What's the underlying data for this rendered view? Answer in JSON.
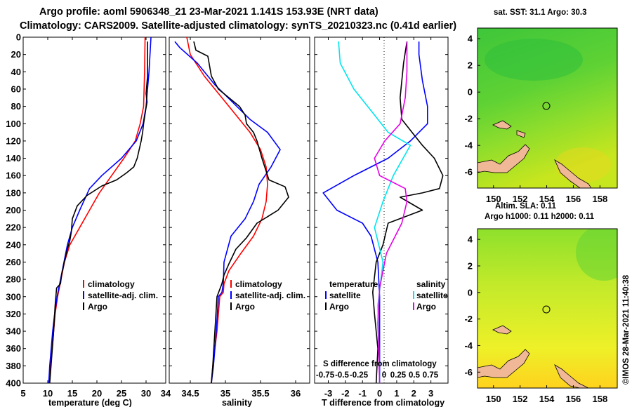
{
  "header": {
    "line1": "Argo profile: aoml 5906348_21 23-Mar-2021 1.141S 153.93E (NRT data)",
    "line2": "Climatology: CARS2009. Satellite-adjusted climatology: synTS_20210323.nc (0.41d earlier)"
  },
  "colors": {
    "climatology": "#ff0000",
    "satellite": "#0000ff",
    "argo": "#000000",
    "t_diff": "#0000ff",
    "s_sat": "#00e5ee",
    "s_argo": "#e600e6",
    "land": "#f0b896"
  },
  "chart_data": [
    {
      "type": "line",
      "name": "temperature",
      "xlabel": "temperature (deg C)",
      "ylabel": "depth",
      "xlim": [
        5,
        34
      ],
      "ylim": [
        400,
        0
      ],
      "xticks": [
        5,
        10,
        15,
        20,
        25,
        30
      ],
      "yticks": [
        0,
        20,
        40,
        60,
        80,
        100,
        120,
        140,
        160,
        180,
        200,
        220,
        240,
        260,
        280,
        300,
        320,
        340,
        360,
        380,
        400
      ],
      "legend": [
        "climatology",
        "satellite-adj. clim.",
        "Argo"
      ],
      "series": [
        {
          "name": "climatology",
          "color": "#ff0000",
          "points": [
            [
              29.8,
              0
            ],
            [
              29.7,
              40
            ],
            [
              29.5,
              80
            ],
            [
              28.8,
              100
            ],
            [
              27.8,
              120
            ],
            [
              25.5,
              140
            ],
            [
              23,
              160
            ],
            [
              20.5,
              180
            ],
            [
              18.5,
              200
            ],
            [
              16.5,
              220
            ],
            [
              14.5,
              240
            ],
            [
              13.4,
              260
            ],
            [
              12.7,
              280
            ],
            [
              12,
              300
            ],
            [
              11.5,
              320
            ],
            [
              11.2,
              340
            ],
            [
              10.9,
              360
            ],
            [
              10.6,
              380
            ],
            [
              10.3,
              400
            ]
          ]
        },
        {
          "name": "satellite-adj. clim.",
          "color": "#0000ff",
          "points": [
            [
              31,
              0
            ],
            [
              30.6,
              40
            ],
            [
              30,
              80
            ],
            [
              29.4,
              100
            ],
            [
              28,
              120
            ],
            [
              25,
              140
            ],
            [
              21,
              160
            ],
            [
              18.5,
              175
            ],
            [
              16.5,
              200
            ],
            [
              15,
              220
            ],
            [
              14,
              240
            ],
            [
              13.3,
              260
            ],
            [
              12.6,
              280
            ],
            [
              11.9,
              300
            ],
            [
              11.4,
              320
            ],
            [
              11,
              340
            ],
            [
              10.7,
              360
            ],
            [
              10.4,
              380
            ],
            [
              10.2,
              400
            ]
          ]
        },
        {
          "name": "Argo",
          "color": "#000000",
          "points": [
            [
              30.3,
              5
            ],
            [
              30.3,
              45
            ],
            [
              30,
              65
            ],
            [
              30.2,
              75
            ],
            [
              29.9,
              85
            ],
            [
              29.5,
              100
            ],
            [
              29.3,
              110
            ],
            [
              29,
              120
            ],
            [
              28.2,
              140
            ],
            [
              27.5,
              150
            ],
            [
              26,
              157
            ],
            [
              24,
              165
            ],
            [
              21,
              172
            ],
            [
              18,
              183
            ],
            [
              16,
              195
            ],
            [
              15,
              210
            ],
            [
              14.8,
              225
            ],
            [
              14.5,
              235
            ],
            [
              14,
              245
            ],
            [
              13.3,
              262
            ],
            [
              12.8,
              275
            ],
            [
              12.6,
              285
            ],
            [
              11.8,
              290
            ],
            [
              11.5,
              310
            ],
            [
              11.2,
              340
            ],
            [
              10.8,
              370
            ],
            [
              10.4,
              400
            ]
          ]
        }
      ]
    },
    {
      "type": "line",
      "name": "salinity",
      "xlabel": "salinity",
      "ylabel": "depth",
      "xlim": [
        34.2,
        36.2
      ],
      "ylim": [
        400,
        0
      ],
      "xticks": [
        34.5,
        35,
        35.5,
        36
      ],
      "legend": [
        "climatology",
        "satellite-adj. clim.",
        "Argo"
      ],
      "series": [
        {
          "name": "climatology",
          "color": "#ff0000",
          "points": [
            [
              34.45,
              0
            ],
            [
              34.5,
              20
            ],
            [
              34.7,
              45
            ],
            [
              34.95,
              70
            ],
            [
              35.15,
              90
            ],
            [
              35.35,
              110
            ],
            [
              35.5,
              130
            ],
            [
              35.58,
              150
            ],
            [
              35.6,
              170
            ],
            [
              35.58,
              190
            ],
            [
              35.52,
              210
            ],
            [
              35.4,
              230
            ],
            [
              35.22,
              250
            ],
            [
              35.05,
              270
            ],
            [
              34.98,
              285
            ],
            [
              34.97,
              295
            ],
            [
              34.92,
              300
            ],
            [
              34.88,
              340
            ],
            [
              34.82,
              380
            ],
            [
              34.8,
              400
            ]
          ]
        },
        {
          "name": "satellite-adj. clim.",
          "color": "#0000ff",
          "points": [
            [
              34.28,
              5
            ],
            [
              34.35,
              12
            ],
            [
              34.6,
              30
            ],
            [
              34.85,
              55
            ],
            [
              35.1,
              75
            ],
            [
              35.35,
              95
            ],
            [
              35.6,
              110
            ],
            [
              35.78,
              130
            ],
            [
              35.65,
              150
            ],
            [
              35.48,
              170
            ],
            [
              35.4,
              190
            ],
            [
              35.28,
              210
            ],
            [
              35.08,
              230
            ],
            [
              34.98,
              260
            ],
            [
              34.97,
              285
            ],
            [
              34.95,
              295
            ],
            [
              34.9,
              300
            ],
            [
              34.87,
              340
            ],
            [
              34.83,
              380
            ],
            [
              34.8,
              400
            ]
          ]
        },
        {
          "name": "Argo",
          "color": "#000000",
          "points": [
            [
              34.55,
              5
            ],
            [
              34.58,
              15
            ],
            [
              34.75,
              22
            ],
            [
              34.8,
              45
            ],
            [
              34.9,
              60
            ],
            [
              35.05,
              70
            ],
            [
              35.2,
              80
            ],
            [
              35.28,
              90
            ],
            [
              35.3,
              100
            ],
            [
              35.4,
              110
            ],
            [
              35.45,
              120
            ],
            [
              35.52,
              140
            ],
            [
              35.58,
              155
            ],
            [
              35.62,
              165
            ],
            [
              35.85,
              173
            ],
            [
              35.9,
              185
            ],
            [
              35.75,
              200
            ],
            [
              35.45,
              215
            ],
            [
              35.3,
              232
            ],
            [
              35.15,
              245
            ],
            [
              35.05,
              262
            ],
            [
              34.98,
              275
            ],
            [
              34.95,
              285
            ],
            [
              34.88,
              300
            ],
            [
              34.85,
              340
            ],
            [
              34.82,
              380
            ],
            [
              34.8,
              400
            ]
          ]
        }
      ]
    },
    {
      "type": "line",
      "name": "difference",
      "xlabel": "T difference from climatology",
      "top_label": "S difference from climatology",
      "xlim": [
        -3.8,
        4
      ],
      "xticks": [
        -3,
        -2,
        -1,
        0,
        1,
        2,
        3
      ],
      "s_ticks": [
        "-0.75",
        "-0.5",
        "-0.25",
        "0",
        "0.25",
        "0.5",
        "0.75"
      ],
      "legend_temperature": {
        "title": "temperature",
        "items": [
          "satellite",
          "Argo"
        ]
      },
      "legend_salinity": {
        "title": "salinity",
        "items": [
          "satellite",
          "Argo"
        ]
      },
      "series": [
        {
          "name": "T satellite",
          "color": "#0000ff",
          "points": [
            [
              2.3,
              5
            ],
            [
              2.3,
              20
            ],
            [
              2.5,
              50
            ],
            [
              2.8,
              80
            ],
            [
              2.8,
              100
            ],
            [
              1.8,
              120
            ],
            [
              0.5,
              140
            ],
            [
              -1.5,
              160
            ],
            [
              -3.3,
              180
            ],
            [
              -2.5,
              200
            ],
            [
              -1,
              215
            ],
            [
              -0.5,
              230
            ],
            [
              -0.1,
              260
            ],
            [
              0,
              300
            ],
            [
              0,
              400
            ]
          ]
        },
        {
          "name": "T Argo",
          "color": "#000000",
          "points": [
            [
              1.6,
              5
            ],
            [
              1.4,
              30
            ],
            [
              1.2,
              70
            ],
            [
              1.3,
              95
            ],
            [
              1.9,
              110
            ],
            [
              2.5,
              125
            ],
            [
              3.2,
              140
            ],
            [
              3.7,
              160
            ],
            [
              3.5,
              175
            ],
            [
              2.5,
              180
            ],
            [
              1.2,
              185
            ],
            [
              2.5,
              200
            ],
            [
              0.5,
              215
            ],
            [
              0.2,
              240
            ],
            [
              -0.2,
              260
            ],
            [
              -0.4,
              295
            ],
            [
              -0.3,
              320
            ],
            [
              -0.1,
              360
            ],
            [
              -0.2,
              400
            ]
          ]
        },
        {
          "name": "S satellite",
          "color": "#00e5ee",
          "points": [
            [
              -2.4,
              5
            ],
            [
              -2.3,
              30
            ],
            [
              -1.5,
              60
            ],
            [
              -0.3,
              90
            ],
            [
              0.5,
              110
            ],
            [
              1.8,
              125
            ],
            [
              0.8,
              160
            ],
            [
              0.2,
              190
            ],
            [
              -0.3,
              220
            ],
            [
              0.2,
              260
            ],
            [
              -0.1,
              310
            ],
            [
              0,
              400
            ]
          ]
        },
        {
          "name": "S Argo",
          "color": "#e600e6",
          "points": [
            [
              1.6,
              5
            ],
            [
              1.6,
              40
            ],
            [
              1.5,
              70
            ],
            [
              1.2,
              100
            ],
            [
              0.3,
              120
            ],
            [
              -0.3,
              140
            ],
            [
              0,
              160
            ],
            [
              1.5,
              175
            ],
            [
              1.6,
              190
            ],
            [
              1.3,
              215
            ],
            [
              0.4,
              250
            ],
            [
              0,
              290
            ],
            [
              -0.1,
              330
            ],
            [
              0,
              400
            ]
          ]
        }
      ]
    }
  ],
  "maps": {
    "top": {
      "title": "sat. SST: 31.1  Argo: 30.3",
      "xticks": [
        "150",
        "152",
        "154",
        "156",
        "158"
      ],
      "yticks": [
        "4",
        "2",
        "0",
        "-2",
        "-4",
        "-6"
      ],
      "marker_lon": 154,
      "marker_lat": -1.2
    },
    "bottom": {
      "title_line1": "Altim. SLA: 0.11",
      "title_line2": "Argo h1000: 0.11 h2000: 0.11",
      "xticks": [
        "150",
        "152",
        "154",
        "156",
        "158"
      ],
      "yticks": [
        "4",
        "2",
        "0",
        "-2",
        "-4",
        "-6"
      ],
      "marker_lon": 154,
      "marker_lat": -1.2
    }
  },
  "credit": "©IMOS 28-Mar-2021 11:40:38"
}
